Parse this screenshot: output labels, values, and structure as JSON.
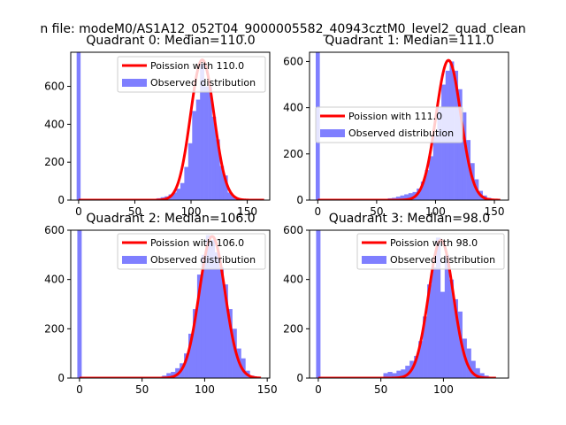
{
  "figure_title": "n file: modeM0/AS1A12_052T04_9000005582_40943cztM0_level2_quad_clean",
  "colors": {
    "observed": "#7f7fff",
    "poisson": "#ff0000",
    "axis": "#000000"
  },
  "chart_data": [
    {
      "type": "bar",
      "title": "Quadrant 0: Median=110.0",
      "legend": {
        "placement": "top-right",
        "line_label": "Poission with 110.0",
        "bar_label": "Observed distribution"
      },
      "xlim": [
        -7,
        170
      ],
      "ylim": [
        0,
        780
      ],
      "xticks": [
        0,
        50,
        100,
        150
      ],
      "xtick_labels": [
        "0",
        "50",
        "100",
        "150"
      ],
      "yticks": [
        0,
        200,
        400,
        600
      ],
      "ytick_labels": [
        "0",
        "200",
        "400",
        "600"
      ],
      "spike": {
        "x": 0,
        "width": 3.5,
        "value": 780
      },
      "bin_width": 3.5,
      "bins_x": [
        66,
        69.5,
        73,
        76.5,
        80,
        83.5,
        87,
        90.5,
        94,
        97.5,
        101,
        104.5,
        108,
        111.5,
        115,
        118.5,
        122,
        125.5,
        129,
        132.5,
        136,
        139.5,
        143
      ],
      "bins_y": [
        5,
        10,
        15,
        20,
        30,
        40,
        60,
        90,
        175,
        300,
        470,
        530,
        720,
        600,
        600,
        440,
        320,
        180,
        130,
        40,
        20,
        10,
        5
      ],
      "poisson_mean": 110,
      "poisson_peak": 740,
      "poisson_range": [
        0,
        165
      ]
    },
    {
      "type": "bar",
      "title": "Quadrant 1: Median=111.0",
      "legend": {
        "placement": "center-left",
        "line_label": "Poission with 111.0",
        "bar_label": "Observed distribution"
      },
      "xlim": [
        -7,
        162
      ],
      "ylim": [
        0,
        640
      ],
      "xticks": [
        0,
        50,
        100,
        150
      ],
      "xtick_labels": [
        "0",
        "50",
        "100",
        "150"
      ],
      "yticks": [
        0,
        200,
        400,
        600
      ],
      "ytick_labels": [
        "0",
        "200",
        "400",
        "600"
      ],
      "spike": {
        "x": 0,
        "width": 3.5,
        "value": 640
      },
      "bin_width": 3.5,
      "bins_x": [
        56,
        59.5,
        63,
        66.5,
        70,
        73.5,
        77,
        80.5,
        84,
        87.5,
        91,
        94.5,
        98,
        101.5,
        105,
        108.5,
        112,
        115.5,
        119,
        122.5,
        126,
        129.5,
        133,
        136.5,
        140,
        143.5
      ],
      "bins_y": [
        5,
        8,
        10,
        15,
        20,
        25,
        30,
        35,
        50,
        80,
        130,
        190,
        280,
        400,
        500,
        560,
        600,
        560,
        480,
        380,
        260,
        160,
        90,
        40,
        20,
        10
      ],
      "poisson_mean": 111,
      "poisson_peak": 605,
      "poisson_range": [
        0,
        155
      ]
    },
    {
      "type": "bar",
      "title": "Quadrant 2: Median=106.0",
      "legend": {
        "placement": "top-right",
        "line_label": "Poission with 106.0",
        "bar_label": "Observed distribution"
      },
      "xlim": [
        -7,
        152
      ],
      "ylim": [
        0,
        600
      ],
      "xticks": [
        0,
        50,
        100,
        150
      ],
      "xtick_labels": [
        "0",
        "50",
        "100",
        "150"
      ],
      "yticks": [
        0,
        200,
        400,
        600
      ],
      "ytick_labels": [
        "0",
        "200",
        "400",
        "600"
      ],
      "spike": {
        "x": 0,
        "width": 3.5,
        "value": 600
      },
      "bin_width": 3.5,
      "bins_x": [
        66,
        69.5,
        73,
        76.5,
        80,
        83.5,
        87,
        90.5,
        94,
        97.5,
        101,
        104.5,
        108,
        111.5,
        115,
        118.5,
        122,
        125.5,
        129,
        132.5,
        136
      ],
      "bins_y": [
        10,
        20,
        25,
        40,
        60,
        100,
        180,
        280,
        420,
        500,
        580,
        560,
        510,
        450,
        380,
        280,
        200,
        120,
        80,
        30,
        10
      ],
      "poisson_mean": 106,
      "poisson_peak": 575,
      "poisson_range": [
        0,
        145
      ]
    },
    {
      "type": "bar",
      "title": "Quadrant 3: Median=98.0",
      "legend": {
        "placement": "top-right",
        "line_label": "Poission with 98.0",
        "bar_label": "Observed distribution"
      },
      "xlim": [
        -7,
        152
      ],
      "ylim": [
        0,
        600
      ],
      "xticks": [
        0,
        50,
        100
      ],
      "xtick_labels": [
        "0",
        "50",
        "100"
      ],
      "yticks": [
        0,
        200,
        400,
        600
      ],
      "ytick_labels": [
        "0",
        "200",
        "400",
        "600"
      ],
      "spike": {
        "x": 0,
        "width": 3.5,
        "value": 600
      },
      "bin_width": 3.5,
      "bins_x": [
        52,
        55.5,
        59,
        62.5,
        66,
        69.5,
        73,
        76.5,
        80,
        83.5,
        87,
        90.5,
        94,
        97.5,
        101,
        104.5,
        108,
        111.5,
        115,
        118.5,
        122,
        125.5,
        129,
        132.5
      ],
      "bins_y": [
        20,
        25,
        20,
        30,
        35,
        50,
        70,
        90,
        150,
        250,
        380,
        450,
        570,
        350,
        500,
        400,
        320,
        270,
        160,
        120,
        70,
        40,
        20,
        10
      ],
      "poisson_mean": 98,
      "poisson_peak": 560,
      "poisson_range": [
        0,
        142
      ]
    }
  ]
}
